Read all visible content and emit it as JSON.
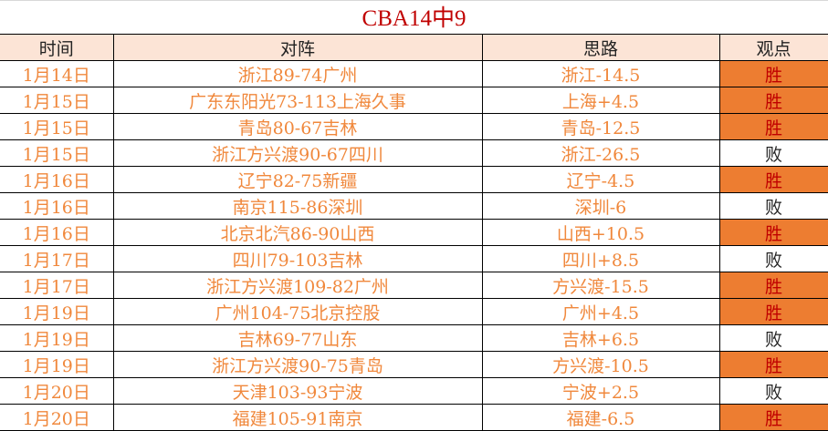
{
  "title": "CBA14中9",
  "headers": [
    "时间",
    "对阵",
    "思路",
    "观点"
  ],
  "colors": {
    "header_bg": "#fce4d6",
    "win_bg": "#ed7d31",
    "win_text": "#c00000",
    "cell_text": "#f0883c",
    "title": "#c00000"
  },
  "rows": [
    {
      "date": "1月14日",
      "match": "浙江89-74广州",
      "pick": "浙江-14.5",
      "result": "胜"
    },
    {
      "date": "1月15日",
      "match": "广东东阳光73-113上海久事",
      "pick": "上海+4.5",
      "result": "胜"
    },
    {
      "date": "1月15日",
      "match": "青岛80-67吉林",
      "pick": "青岛-12.5",
      "result": "胜"
    },
    {
      "date": "1月15日",
      "match": "浙江方兴渡90-67四川",
      "pick": "浙江-26.5",
      "result": "败"
    },
    {
      "date": "1月16日",
      "match": "辽宁82-75新疆",
      "pick": "辽宁-4.5",
      "result": "胜"
    },
    {
      "date": "1月16日",
      "match": "南京115-86深圳",
      "pick": "深圳-6",
      "result": "败"
    },
    {
      "date": "1月16日",
      "match": "北京北汽86-90山西",
      "pick": "山西+10.5",
      "result": "胜"
    },
    {
      "date": "1月17日",
      "match": "四川79-103吉林",
      "pick": "四川+8.5",
      "result": "败"
    },
    {
      "date": "1月17日",
      "match": "浙江方兴渡109-82广州",
      "pick": "方兴渡-15.5",
      "result": "胜"
    },
    {
      "date": "1月19日",
      "match": "广州104-75北京控股",
      "pick": "广州+4.5",
      "result": "胜"
    },
    {
      "date": "1月19日",
      "match": "吉林69-77山东",
      "pick": "吉林+6.5",
      "result": "败"
    },
    {
      "date": "1月19日",
      "match": "浙江方兴渡90-75青岛",
      "pick": "方兴渡-10.5",
      "result": "胜"
    },
    {
      "date": "1月20日",
      "match": "天津103-93宁波",
      "pick": "宁波+2.5",
      "result": "败"
    },
    {
      "date": "1月20日",
      "match": "福建105-91南京",
      "pick": "福建-6.5",
      "result": "胜"
    }
  ]
}
